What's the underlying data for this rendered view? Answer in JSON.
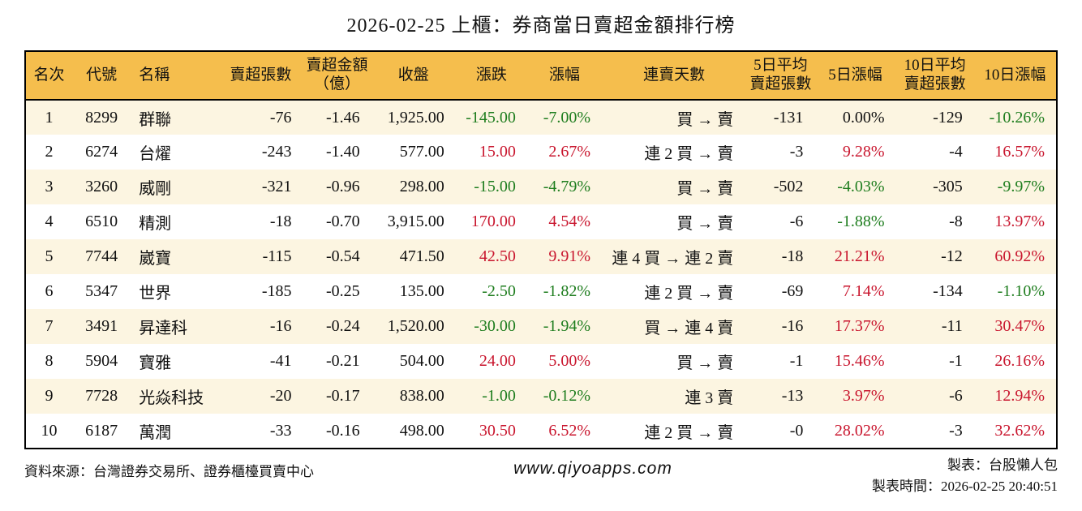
{
  "title": "2026-02-25 上櫃：券商當日賣超金額排行榜",
  "colors": {
    "header_bg": "#F5BE4D",
    "row_stripe": "#FCF5E1",
    "up_red": "#C9162E",
    "down_green": "#1E7D1E"
  },
  "table": {
    "headers": [
      "名次",
      "代號",
      "名稱",
      "賣超張數",
      "賣超金額\n（億）",
      "收盤",
      "漲跌",
      "漲幅",
      "連賣天數",
      "5日平均\n賣超張數",
      "5日漲幅",
      "10日平均\n賣超張數",
      "10日漲幅"
    ],
    "rows": [
      {
        "rank": "1",
        "code": "8299",
        "name": "群聯",
        "sold_lots": "-76",
        "sold_amount": "-1.46",
        "close": "1,925.00",
        "change": "-145.00",
        "change_dir": "down",
        "change_pct": "-7.00%",
        "streak": "買 → 賣",
        "avg5": "-131",
        "pct5": "0.00%",
        "pct5_dir": "flat",
        "avg10": "-129",
        "pct10": "-10.26%",
        "pct10_dir": "down"
      },
      {
        "rank": "2",
        "code": "6274",
        "name": "台燿",
        "sold_lots": "-243",
        "sold_amount": "-1.40",
        "close": "577.00",
        "change": "15.00",
        "change_dir": "up",
        "change_pct": "2.67%",
        "streak": "連 2 買 → 賣",
        "avg5": "-3",
        "pct5": "9.28%",
        "pct5_dir": "up",
        "avg10": "-4",
        "pct10": "16.57%",
        "pct10_dir": "up"
      },
      {
        "rank": "3",
        "code": "3260",
        "name": "威剛",
        "sold_lots": "-321",
        "sold_amount": "-0.96",
        "close": "298.00",
        "change": "-15.00",
        "change_dir": "down",
        "change_pct": "-4.79%",
        "streak": "買 → 賣",
        "avg5": "-502",
        "pct5": "-4.03%",
        "pct5_dir": "down",
        "avg10": "-305",
        "pct10": "-9.97%",
        "pct10_dir": "down"
      },
      {
        "rank": "4",
        "code": "6510",
        "name": "精測",
        "sold_lots": "-18",
        "sold_amount": "-0.70",
        "close": "3,915.00",
        "change": "170.00",
        "change_dir": "up",
        "change_pct": "4.54%",
        "streak": "買 → 賣",
        "avg5": "-6",
        "pct5": "-1.88%",
        "pct5_dir": "down",
        "avg10": "-8",
        "pct10": "13.97%",
        "pct10_dir": "up"
      },
      {
        "rank": "5",
        "code": "7744",
        "name": "崴寶",
        "sold_lots": "-115",
        "sold_amount": "-0.54",
        "close": "471.50",
        "change": "42.50",
        "change_dir": "up",
        "change_pct": "9.91%",
        "streak": "連 4 買 → 連 2 賣",
        "avg5": "-18",
        "pct5": "21.21%",
        "pct5_dir": "up",
        "avg10": "-12",
        "pct10": "60.92%",
        "pct10_dir": "up"
      },
      {
        "rank": "6",
        "code": "5347",
        "name": "世界",
        "sold_lots": "-185",
        "sold_amount": "-0.25",
        "close": "135.00",
        "change": "-2.50",
        "change_dir": "down",
        "change_pct": "-1.82%",
        "streak": "連 2 買 → 賣",
        "avg5": "-69",
        "pct5": "7.14%",
        "pct5_dir": "up",
        "avg10": "-134",
        "pct10": "-1.10%",
        "pct10_dir": "down"
      },
      {
        "rank": "7",
        "code": "3491",
        "name": "昇達科",
        "sold_lots": "-16",
        "sold_amount": "-0.24",
        "close": "1,520.00",
        "change": "-30.00",
        "change_dir": "down",
        "change_pct": "-1.94%",
        "streak": "買 → 連 4 賣",
        "avg5": "-16",
        "pct5": "17.37%",
        "pct5_dir": "up",
        "avg10": "-11",
        "pct10": "30.47%",
        "pct10_dir": "up"
      },
      {
        "rank": "8",
        "code": "5904",
        "name": "寶雅",
        "sold_lots": "-41",
        "sold_amount": "-0.21",
        "close": "504.00",
        "change": "24.00",
        "change_dir": "up",
        "change_pct": "5.00%",
        "streak": "買 → 賣",
        "avg5": "-1",
        "pct5": "15.46%",
        "pct5_dir": "up",
        "avg10": "-1",
        "pct10": "26.16%",
        "pct10_dir": "up"
      },
      {
        "rank": "9",
        "code": "7728",
        "name": "光焱科技",
        "sold_lots": "-20",
        "sold_amount": "-0.17",
        "close": "838.00",
        "change": "-1.00",
        "change_dir": "down",
        "change_pct": "-0.12%",
        "streak": "連 3 賣",
        "avg5": "-13",
        "pct5": "3.97%",
        "pct5_dir": "up",
        "avg10": "-6",
        "pct10": "12.94%",
        "pct10_dir": "up"
      },
      {
        "rank": "10",
        "code": "6187",
        "name": "萬潤",
        "sold_lots": "-33",
        "sold_amount": "-0.16",
        "close": "498.00",
        "change": "30.50",
        "change_dir": "up",
        "change_pct": "6.52%",
        "streak": "連 2 買 → 賣",
        "avg5": "-0",
        "pct5": "28.02%",
        "pct5_dir": "up",
        "avg10": "-3",
        "pct10": "32.62%",
        "pct10_dir": "up"
      }
    ]
  },
  "footer": {
    "source": "資料來源：台灣證券交易所、證券櫃檯買賣中心",
    "website": "www.qiyoapps.com",
    "author": "製表：台股懶人包",
    "generated": "製表時間：2026-02-25 20:40:51"
  }
}
